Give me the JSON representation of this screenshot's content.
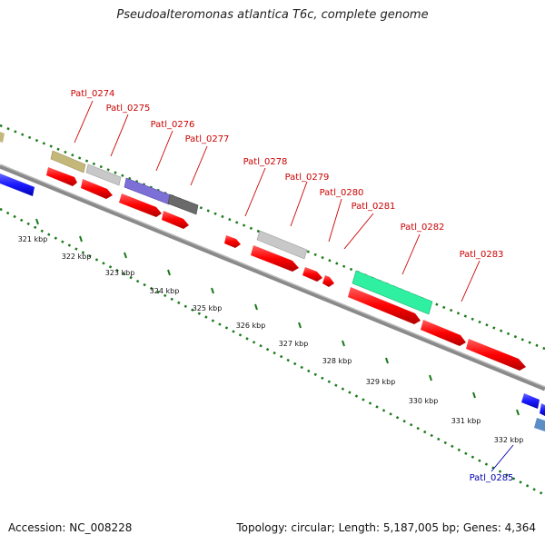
{
  "title": "Pseudoalteromonas atlantica T6c, complete genome",
  "footer": {
    "accession": "Accession: NC_008228",
    "summary": "Topology: circular; Length: 5,187,005 bp; Genes: 4,364"
  },
  "ticks": [
    "321 kbp",
    "322 kbp",
    "323 kbp",
    "324 kbp",
    "325 kbp",
    "326 kbp",
    "327 kbp",
    "328 kbp",
    "329 kbp",
    "330 kbp",
    "331 kbp",
    "332 kbp"
  ],
  "gene_labels": [
    {
      "name": "Patl_0274",
      "color": "#cc0000"
    },
    {
      "name": "Patl_0275",
      "color": "#cc0000"
    },
    {
      "name": "Patl_0276",
      "color": "#cc0000"
    },
    {
      "name": "Patl_0277",
      "color": "#cc0000"
    },
    {
      "name": "Patl_0278",
      "color": "#cc0000"
    },
    {
      "name": "Patl_0279",
      "color": "#cc0000"
    },
    {
      "name": "Patl_0280",
      "color": "#cc0000"
    },
    {
      "name": "Patl_0281",
      "color": "#cc0000"
    },
    {
      "name": "Patl_0282",
      "color": "#cc0000"
    },
    {
      "name": "Patl_0283",
      "color": "#cc0000"
    },
    {
      "name": "Patl_0285",
      "color": "#0000aa"
    }
  ],
  "colors": {
    "backbone": "#888888",
    "tick": "#1a7a1a",
    "cds": "#ff0000",
    "blue_feature": "#1a1aff"
  }
}
